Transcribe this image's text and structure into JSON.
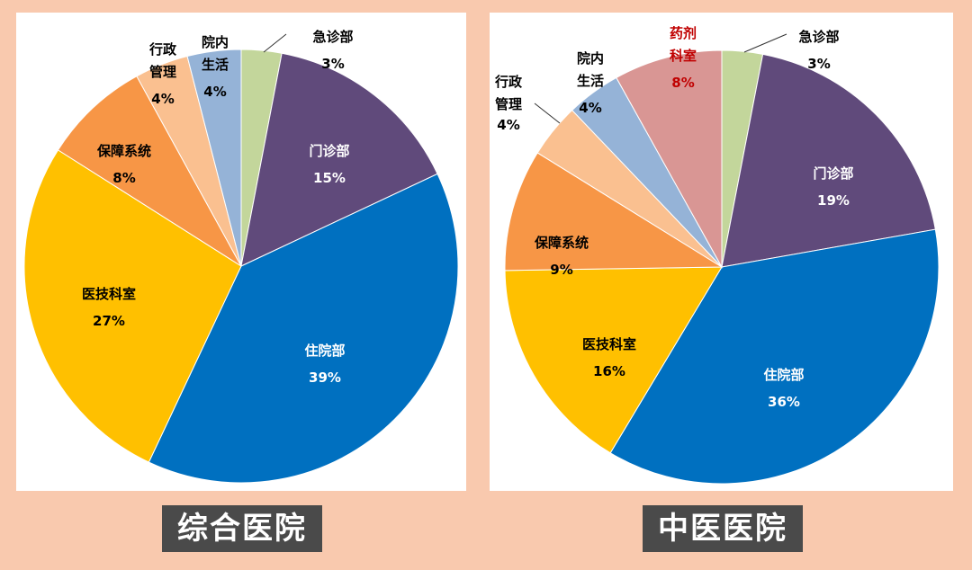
{
  "chart_data": [
    {
      "type": "pie",
      "title": "综合医院",
      "slices": [
        {
          "label": "急诊部",
          "value": 3,
          "value_label": "3%",
          "color": "#C3D69B"
        },
        {
          "label": "门诊部",
          "value": 15,
          "value_label": "15%",
          "color": "#604A7B"
        },
        {
          "label": "住院部",
          "value": 39,
          "value_label": "39%",
          "color": "#0070C0"
        },
        {
          "label": "医技科室",
          "value": 27,
          "value_label": "27%",
          "color": "#FFC000"
        },
        {
          "label": "保障系统",
          "value": 8,
          "value_label": "8%",
          "color": "#F79646"
        },
        {
          "label": "行政管理",
          "value": 4,
          "value_label": "4%",
          "color": "#FAC090"
        },
        {
          "label": "院内生活",
          "value": 4,
          "value_label": "4%",
          "color": "#95B3D7"
        }
      ]
    },
    {
      "type": "pie",
      "title": "中医医院",
      "slices": [
        {
          "label": "急诊部",
          "value": 3,
          "value_label": "3%",
          "color": "#C3D69B"
        },
        {
          "label": "门诊部",
          "value": 19,
          "value_label": "19%",
          "color": "#604A7B"
        },
        {
          "label": "住院部",
          "value": 36,
          "value_label": "36%",
          "color": "#0070C0"
        },
        {
          "label": "医技科室",
          "value": 16,
          "value_label": "16%",
          "color": "#FFC000"
        },
        {
          "label": "保障系统",
          "value": 9,
          "value_label": "9%",
          "color": "#F79646"
        },
        {
          "label": "行政管理",
          "value": 4,
          "value_label": "4%",
          "color": "#FAC090"
        },
        {
          "label": "院内生活",
          "value": 4,
          "value_label": "4%",
          "color": "#95B3D7"
        },
        {
          "label": "药剂科室",
          "value": 8,
          "value_label": "8%",
          "color": "#D99694",
          "label_color": "#C00000"
        }
      ]
    }
  ]
}
